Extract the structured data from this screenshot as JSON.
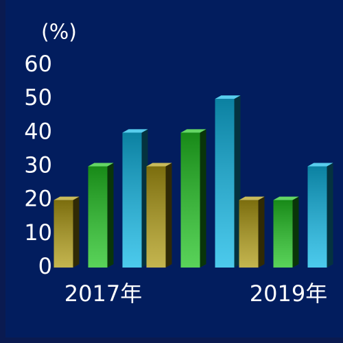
{
  "chart_data": {
    "type": "bar3d",
    "y_label": "(%)",
    "categories": [
      "2017年",
      null,
      "2019年"
    ],
    "series": [
      {
        "color": "#b09c14",
        "values": [
          20,
          30,
          20
        ]
      },
      {
        "color": "#22c422",
        "values": [
          30,
          40,
          20
        ]
      },
      {
        "color": "#10b8e6",
        "values": [
          40,
          50,
          30
        ]
      }
    ],
    "ylim": [
      0,
      60
    ],
    "yticks": [
      0,
      10,
      20,
      30,
      40,
      50,
      60
    ],
    "grid": false
  }
}
